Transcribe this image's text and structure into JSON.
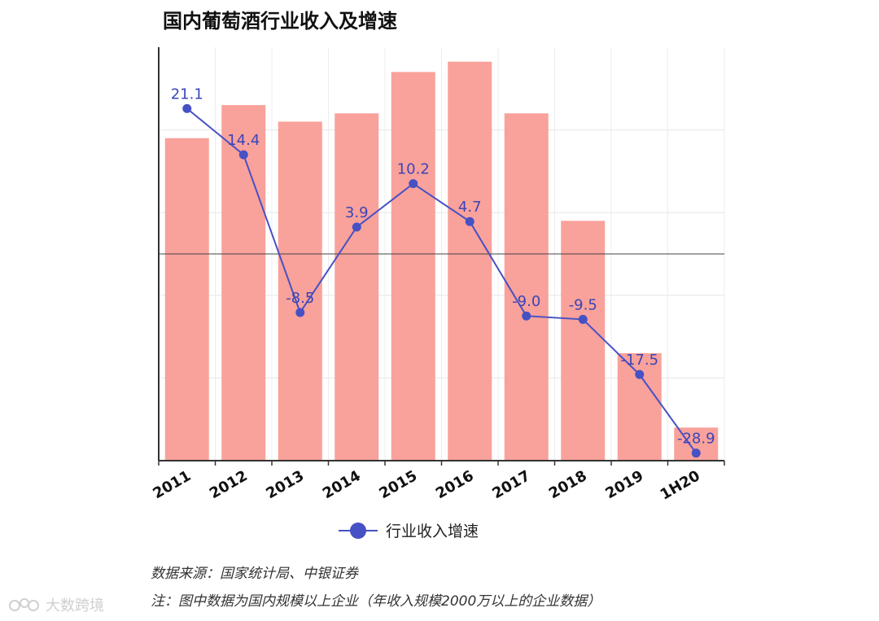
{
  "title": "国内葡萄酒行业收入及增速",
  "chart_data": {
    "type": "bar+line",
    "categories": [
      "2011",
      "2012",
      "2013",
      "2014",
      "2015",
      "2016",
      "2017",
      "2018",
      "2019",
      "1H20"
    ],
    "bar_values_relative": [
      0.78,
      0.86,
      0.82,
      0.84,
      0.94,
      0.965,
      0.84,
      0.58,
      0.26,
      0.08
    ],
    "series": [
      {
        "name": "行业收入增速",
        "type": "line",
        "values": [
          21.1,
          14.4,
          -8.5,
          3.9,
          10.2,
          4.7,
          -9.0,
          -9.5,
          -17.5,
          -28.9
        ]
      }
    ],
    "line_ylim": [
      -30,
      30
    ],
    "zero_line": true,
    "grid": true,
    "legend": "bottom-center",
    "colors": {
      "bar": "#f9a19b",
      "line": "#4651c4",
      "label": "#3a45b8"
    }
  },
  "footnotes": {
    "source": "数据来源：国家统计局、中银证券",
    "note": "注：图中数据为国内规模以上企业（年收入规模2000万以上的企业数据）"
  },
  "watermark": "大数跨境"
}
